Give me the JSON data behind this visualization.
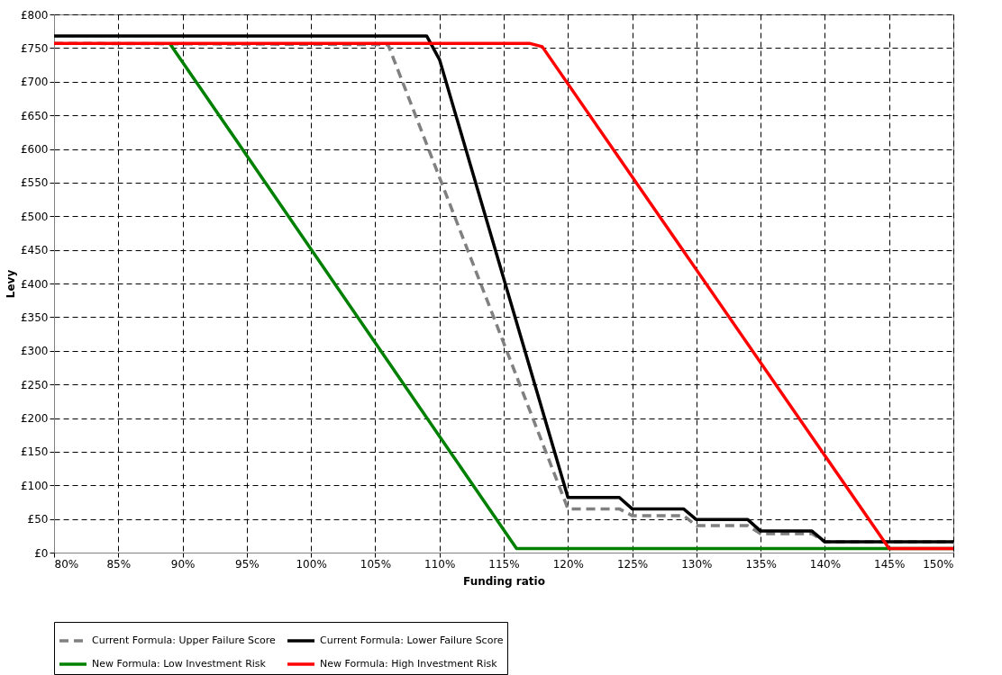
{
  "chart_data": {
    "type": "line",
    "xlabel": "Funding ratio",
    "ylabel": "Levy",
    "xlim": [
      80,
      150
    ],
    "ylim": [
      0,
      800
    ],
    "xticks": [
      {
        "value": 80,
        "label": "80%"
      },
      {
        "value": 85,
        "label": "85%"
      },
      {
        "value": 90,
        "label": "90%"
      },
      {
        "value": 95,
        "label": "95%"
      },
      {
        "value": 100,
        "label": "100%"
      },
      {
        "value": 105,
        "label": "105%"
      },
      {
        "value": 110,
        "label": "110%"
      },
      {
        "value": 115,
        "label": "115%"
      },
      {
        "value": 120,
        "label": "120%"
      },
      {
        "value": 125,
        "label": "125%"
      },
      {
        "value": 130,
        "label": "130%"
      },
      {
        "value": 135,
        "label": "135%"
      },
      {
        "value": 140,
        "label": "140%"
      },
      {
        "value": 145,
        "label": "145%"
      },
      {
        "value": 150,
        "label": "150%"
      }
    ],
    "yticks": [
      {
        "value": 0,
        "label": "£0"
      },
      {
        "value": 50,
        "label": "£50"
      },
      {
        "value": 100,
        "label": "£100"
      },
      {
        "value": 150,
        "label": "£150"
      },
      {
        "value": 200,
        "label": "£200"
      },
      {
        "value": 250,
        "label": "£250"
      },
      {
        "value": 300,
        "label": "£300"
      },
      {
        "value": 350,
        "label": "£350"
      },
      {
        "value": 400,
        "label": "£400"
      },
      {
        "value": 450,
        "label": "£450"
      },
      {
        "value": 500,
        "label": "£500"
      },
      {
        "value": 550,
        "label": "£550"
      },
      {
        "value": 600,
        "label": "£600"
      },
      {
        "value": 650,
        "label": "£650"
      },
      {
        "value": 700,
        "label": "£700"
      },
      {
        "value": 750,
        "label": "£750"
      },
      {
        "value": 800,
        "label": "£800"
      }
    ],
    "grid": true,
    "legend": "bottom",
    "marker": "none",
    "series": [
      {
        "name": "Current Formula: Upper Failure Score",
        "color": "#808080",
        "line_style": "dashed",
        "x": [
          80,
          106,
          120,
          124,
          125,
          129,
          130,
          134,
          135,
          139,
          140,
          150
        ],
        "values": [
          757,
          755,
          65,
          65,
          55,
          55,
          40,
          40,
          28,
          28,
          16,
          16
        ]
      },
      {
        "name": "Current Formula: Lower Failure Score",
        "color": "#000000",
        "line_style": "solid",
        "x": [
          80,
          109,
          110,
          120,
          124,
          125,
          129,
          130,
          134,
          135,
          139,
          140,
          150
        ],
        "values": [
          768,
          768,
          733,
          82,
          82,
          65,
          65,
          49,
          49,
          32,
          32,
          16,
          16
        ]
      },
      {
        "name": "New Formula: Low Investment Risk",
        "color": "#008000",
        "line_style": "solid",
        "x": [
          89,
          116,
          150
        ],
        "values": [
          757,
          6,
          6
        ]
      },
      {
        "name": "New Formula: High Investment Risk",
        "color": "#ff0000",
        "line_style": "solid",
        "x": [
          80,
          117,
          118,
          145,
          150
        ],
        "values": [
          757,
          757,
          752,
          6,
          6
        ]
      }
    ]
  }
}
